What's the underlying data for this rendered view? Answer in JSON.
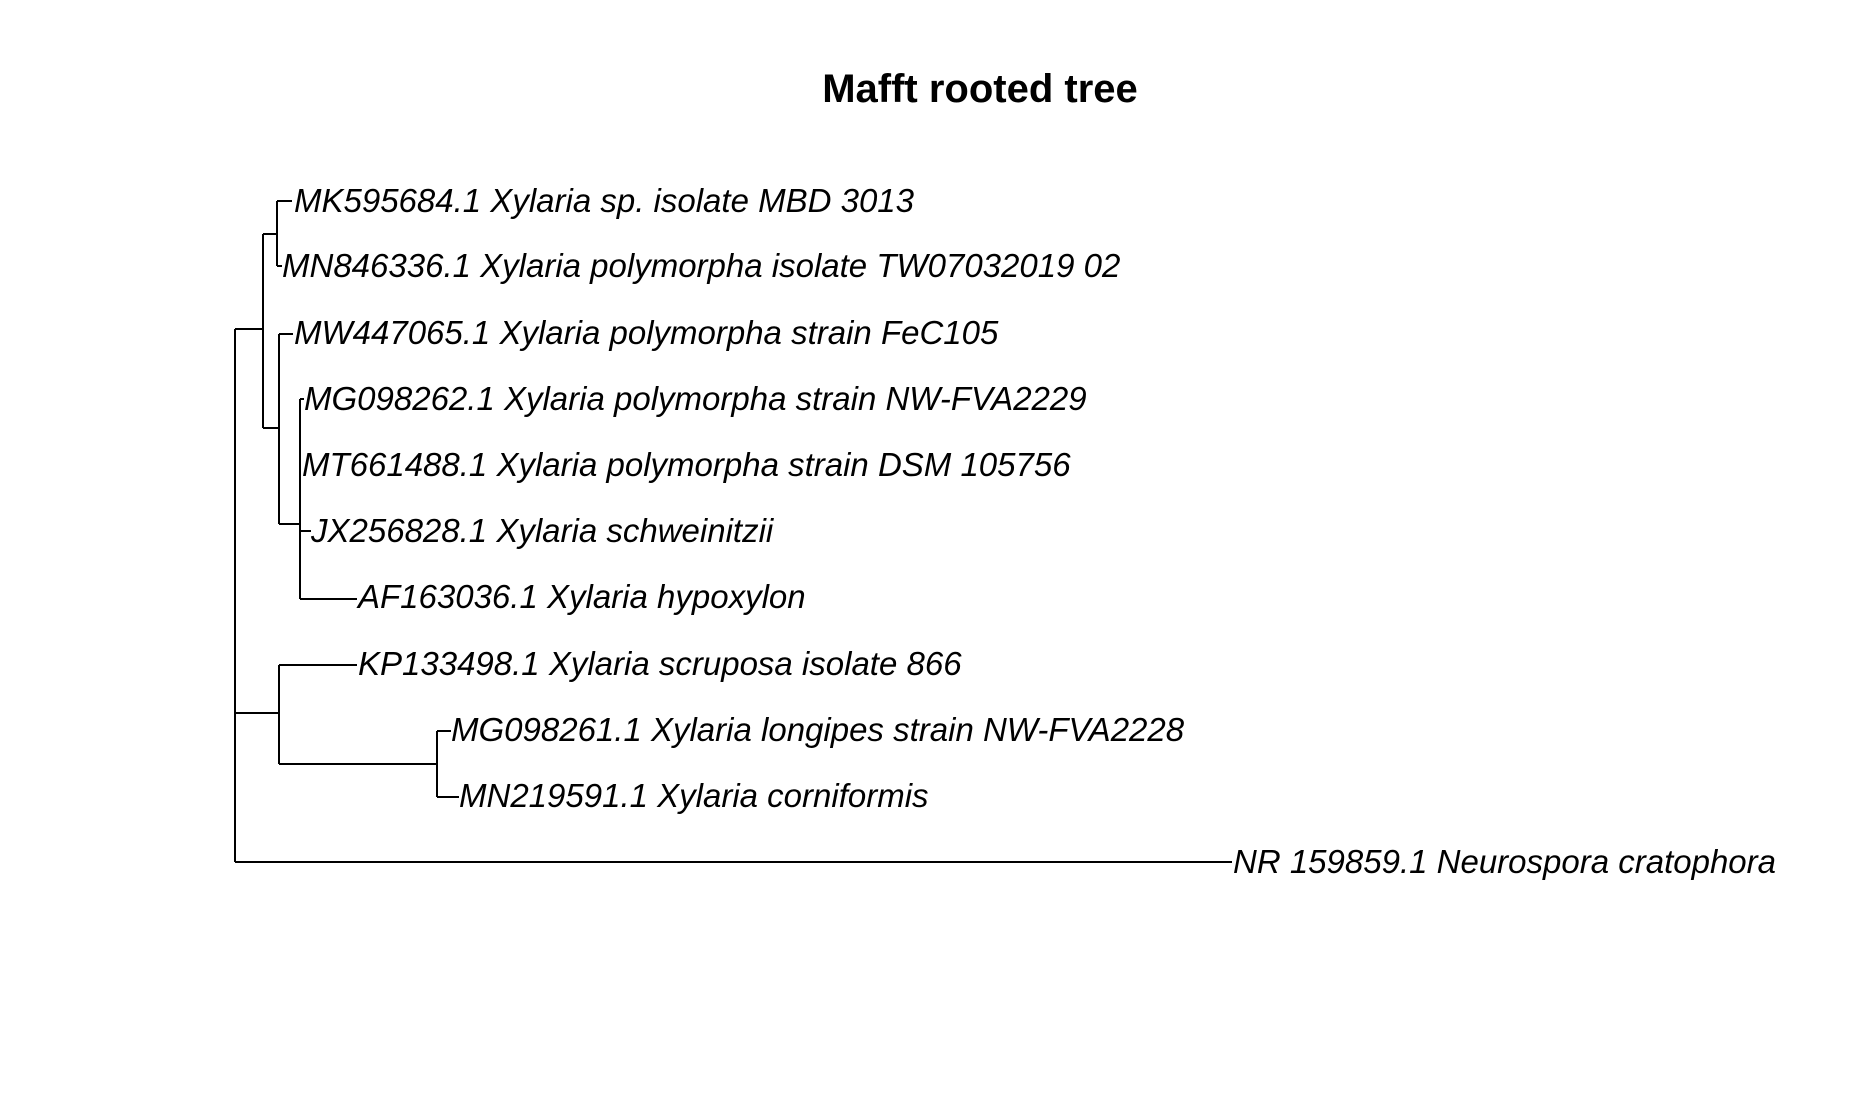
{
  "title": "Mafft rooted tree",
  "tree": {
    "type": "phylogram",
    "rooted": true,
    "tips": [
      "MK595684.1 Xylaria sp. isolate MBD 3013",
      "MN846336.1 Xylaria polymorpha isolate TW07032019 02",
      "MW447065.1 Xylaria polymorpha strain FeC105",
      "MG098262.1 Xylaria polymorpha strain NW-FVA2229",
      "MT661488.1 Xylaria polymorpha strain DSM 105756",
      "JX256828.1 Xylaria schweinitzii",
      "AF163036.1 Xylaria hypoxylon",
      "KP133498.1 Xylaria scruposa isolate 866",
      "MG098261.1 Xylaria longipes strain NW-FVA2228",
      "MN219591.1 Xylaria corniformis",
      "NR 159859.1 Neurospora cratophora"
    ]
  },
  "colors": {
    "line": "#000000",
    "text": "#000000",
    "background": "#ffffff"
  }
}
